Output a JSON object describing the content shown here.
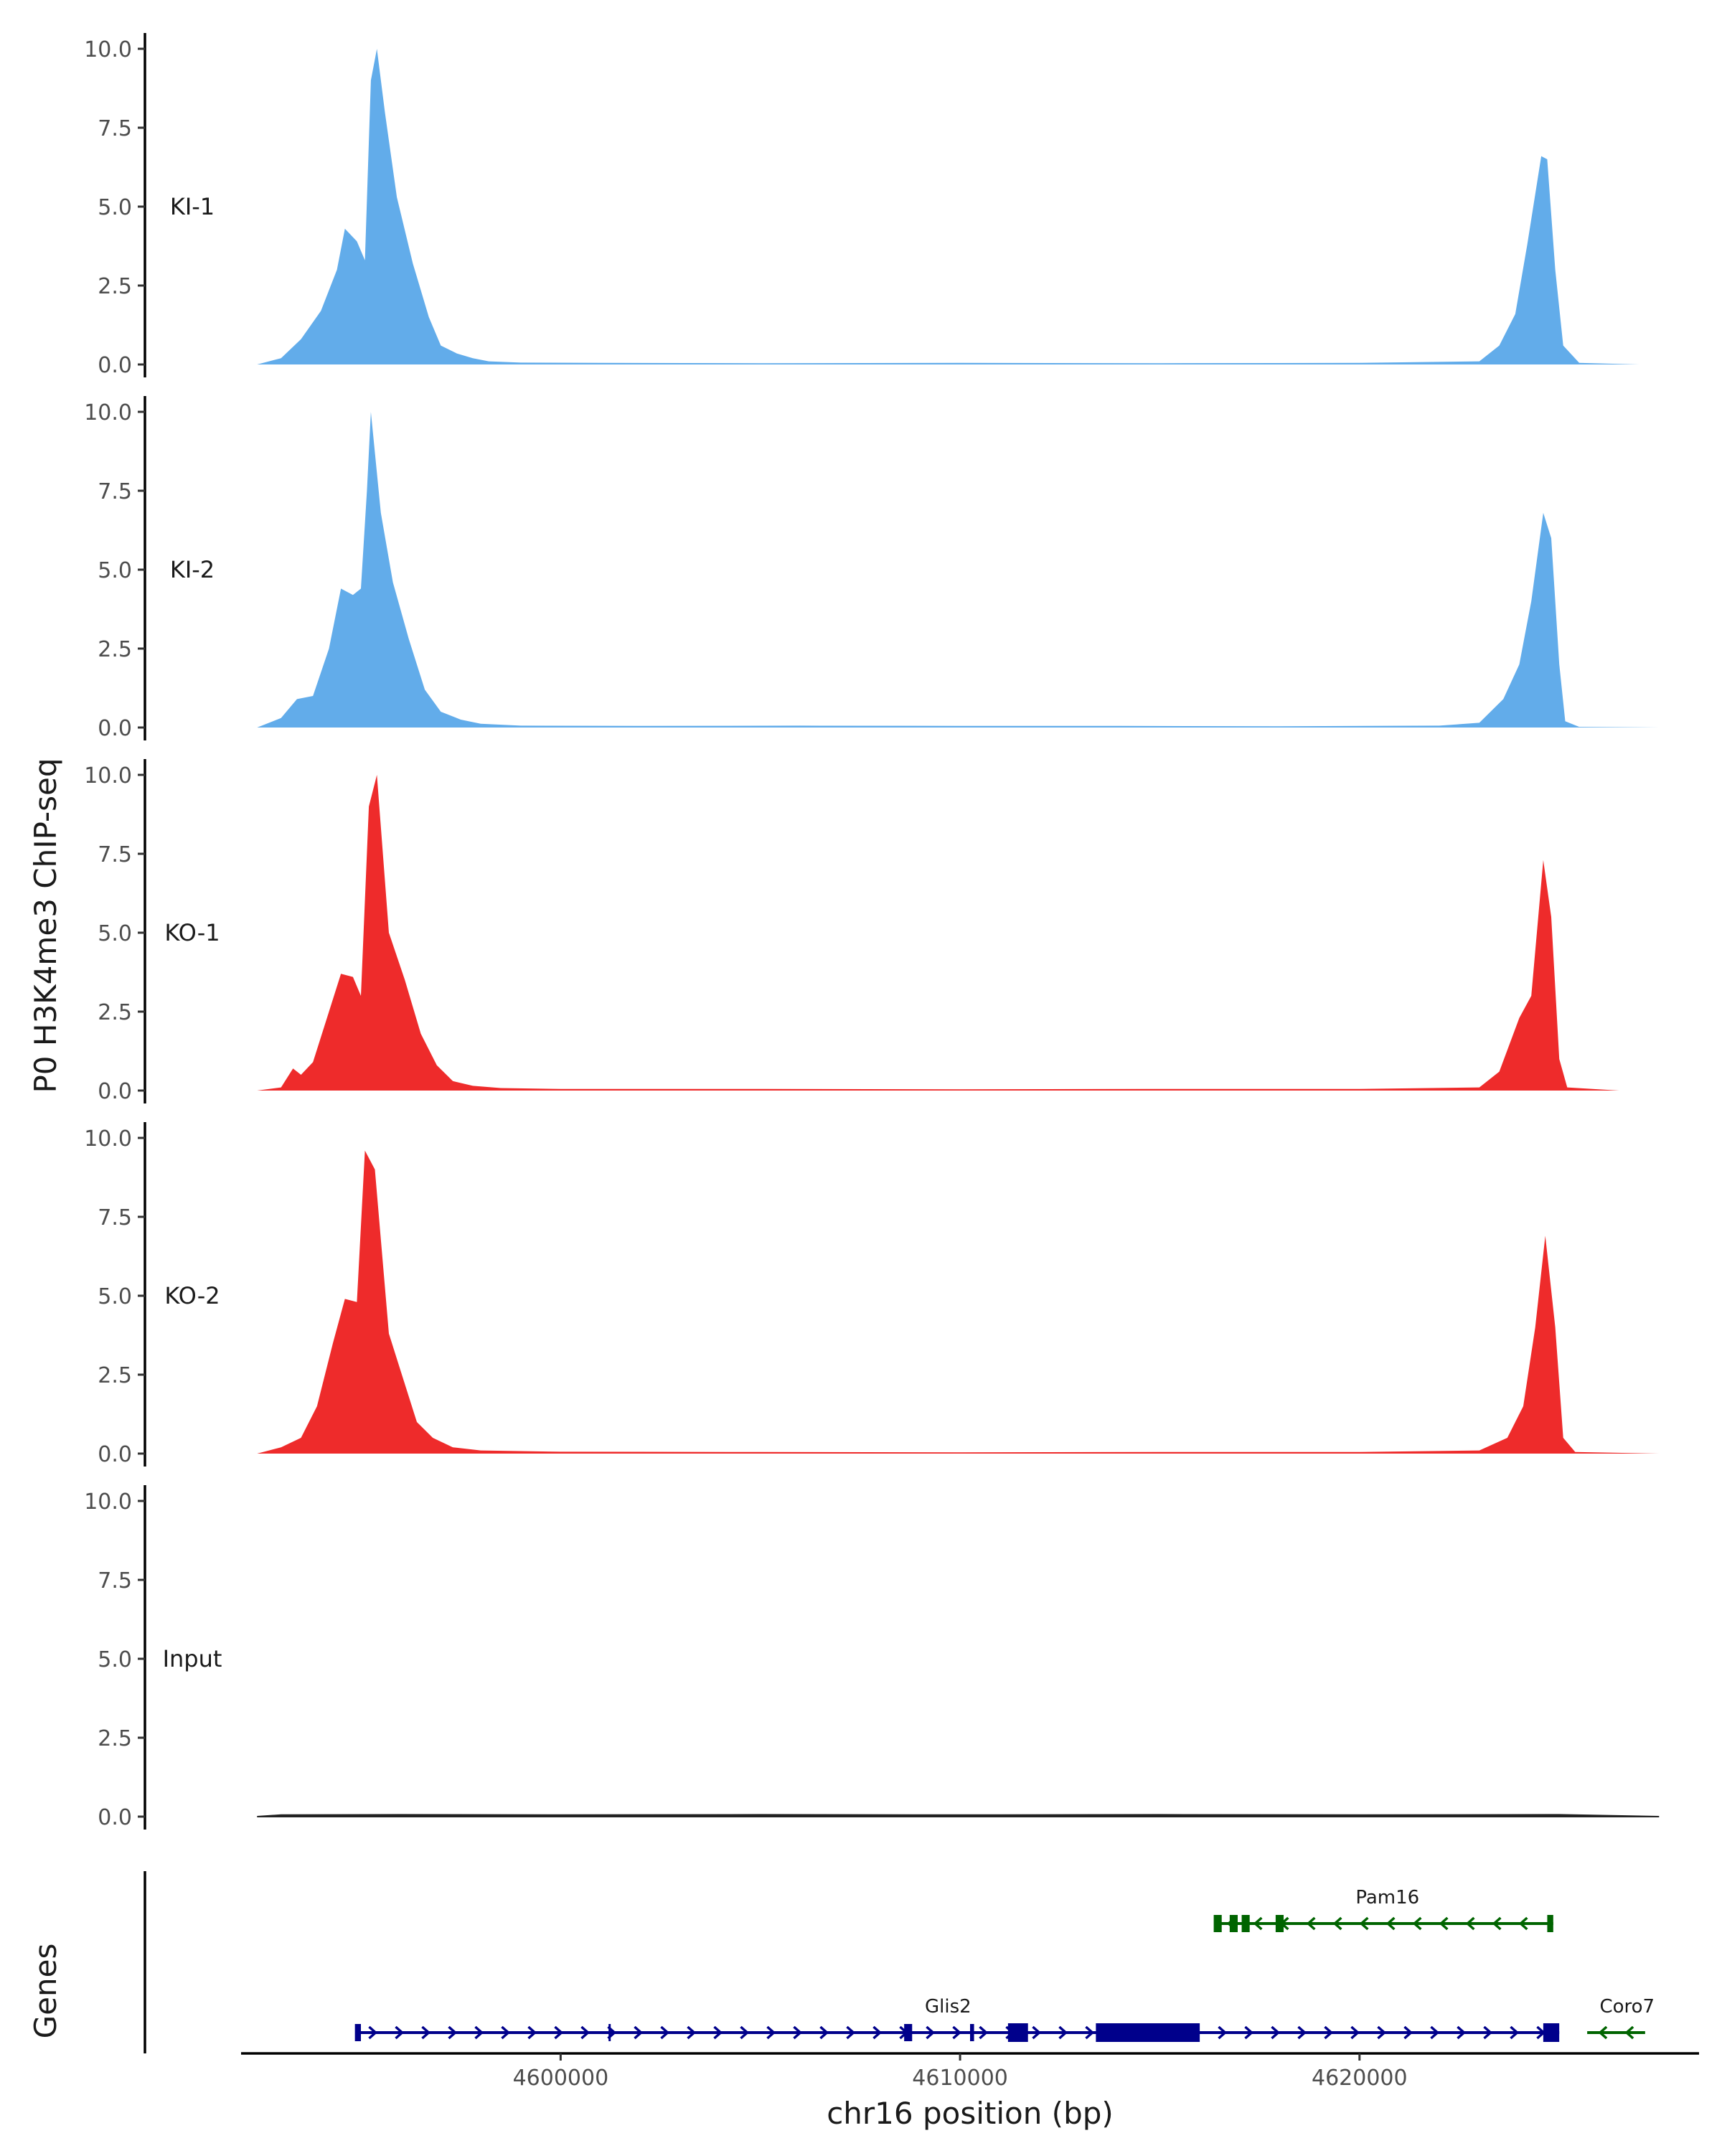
{
  "chart_data": {
    "type": "area",
    "ylabel": "P0 H3K4me3 ChIP-seq",
    "xlabel": "chr16 position (bp)",
    "genes_label": "Genes",
    "x_range": [
      4592000,
      4628500
    ],
    "x_ticks": [
      4600000,
      4610000,
      4620000
    ],
    "x_tick_labels": [
      "4600000",
      "4610000",
      "4620000"
    ],
    "y_range": [
      0,
      10
    ],
    "y_ticks": [
      0,
      2.5,
      5,
      7.5,
      10
    ],
    "y_tick_labels": [
      "0.0",
      "2.5",
      "5.0",
      "7.5",
      "10.0"
    ],
    "colors": {
      "KI": "#62acea",
      "KO": "#ee2b2b",
      "Input": "#222222",
      "Glis2": "#00008b",
      "Pam16": "#006400",
      "Coro7": "#006400"
    },
    "tracks": [
      {
        "name": "KI-1",
        "color": "#62acea",
        "points": [
          [
            4592400,
            0
          ],
          [
            4593000,
            0.2
          ],
          [
            4593500,
            0.8
          ],
          [
            4594000,
            1.7
          ],
          [
            4594400,
            3.0
          ],
          [
            4594600,
            4.3
          ],
          [
            4594900,
            3.9
          ],
          [
            4595100,
            3.3
          ],
          [
            4595250,
            9.0
          ],
          [
            4595400,
            10.0
          ],
          [
            4595600,
            8.0
          ],
          [
            4595900,
            5.3
          ],
          [
            4596300,
            3.2
          ],
          [
            4596700,
            1.5
          ],
          [
            4597000,
            0.6
          ],
          [
            4597400,
            0.35
          ],
          [
            4597800,
            0.2
          ],
          [
            4598200,
            0.1
          ],
          [
            4599000,
            0.06
          ],
          [
            4601000,
            0.05
          ],
          [
            4605000,
            0.04
          ],
          [
            4610000,
            0.05
          ],
          [
            4615000,
            0.04
          ],
          [
            4620000,
            0.05
          ],
          [
            4623000,
            0.1
          ],
          [
            4623500,
            0.6
          ],
          [
            4623900,
            1.6
          ],
          [
            4624200,
            3.8
          ],
          [
            4624550,
            6.6
          ],
          [
            4624700,
            6.5
          ],
          [
            4624900,
            3.0
          ],
          [
            4625100,
            0.6
          ],
          [
            4625500,
            0.05
          ],
          [
            4627000,
            0.0
          ]
        ]
      },
      {
        "name": "KI-2",
        "color": "#62acea",
        "points": [
          [
            4592400,
            0
          ],
          [
            4593000,
            0.3
          ],
          [
            4593400,
            0.9
          ],
          [
            4593800,
            1.0
          ],
          [
            4594200,
            2.5
          ],
          [
            4594500,
            4.4
          ],
          [
            4594800,
            4.2
          ],
          [
            4595000,
            4.4
          ],
          [
            4595150,
            7.5
          ],
          [
            4595250,
            10.0
          ],
          [
            4595500,
            6.8
          ],
          [
            4595800,
            4.6
          ],
          [
            4596200,
            2.8
          ],
          [
            4596600,
            1.2
          ],
          [
            4597000,
            0.5
          ],
          [
            4597500,
            0.25
          ],
          [
            4598000,
            0.12
          ],
          [
            4599000,
            0.06
          ],
          [
            4602000,
            0.05
          ],
          [
            4606000,
            0.06
          ],
          [
            4610000,
            0.05
          ],
          [
            4614000,
            0.05
          ],
          [
            4618000,
            0.04
          ],
          [
            4622000,
            0.06
          ],
          [
            4623000,
            0.15
          ],
          [
            4623600,
            0.9
          ],
          [
            4624000,
            2.0
          ],
          [
            4624300,
            4.0
          ],
          [
            4624600,
            6.8
          ],
          [
            4624800,
            6.0
          ],
          [
            4625000,
            2.0
          ],
          [
            4625150,
            0.2
          ],
          [
            4625500,
            0.02
          ],
          [
            4627500,
            0.0
          ]
        ]
      },
      {
        "name": "KO-1",
        "color": "#ee2b2b",
        "points": [
          [
            4592400,
            0
          ],
          [
            4593000,
            0.1
          ],
          [
            4593300,
            0.7
          ],
          [
            4593500,
            0.5
          ],
          [
            4593800,
            0.9
          ],
          [
            4594200,
            2.5
          ],
          [
            4594500,
            3.7
          ],
          [
            4594800,
            3.6
          ],
          [
            4595000,
            3.0
          ],
          [
            4595200,
            9.0
          ],
          [
            4595400,
            10.0
          ],
          [
            4595700,
            5.0
          ],
          [
            4596100,
            3.5
          ],
          [
            4596500,
            1.8
          ],
          [
            4596900,
            0.8
          ],
          [
            4597300,
            0.3
          ],
          [
            4597800,
            0.15
          ],
          [
            4598500,
            0.08
          ],
          [
            4600000,
            0.05
          ],
          [
            4605000,
            0.05
          ],
          [
            4610000,
            0.04
          ],
          [
            4615000,
            0.05
          ],
          [
            4620000,
            0.05
          ],
          [
            4623000,
            0.1
          ],
          [
            4623500,
            0.6
          ],
          [
            4624000,
            2.3
          ],
          [
            4624300,
            3.0
          ],
          [
            4624600,
            7.3
          ],
          [
            4624800,
            5.5
          ],
          [
            4625000,
            1.0
          ],
          [
            4625200,
            0.1
          ],
          [
            4626500,
            0.0
          ]
        ]
      },
      {
        "name": "KO-2",
        "color": "#ee2b2b",
        "points": [
          [
            4592400,
            0
          ],
          [
            4593000,
            0.2
          ],
          [
            4593500,
            0.5
          ],
          [
            4593900,
            1.5
          ],
          [
            4594300,
            3.5
          ],
          [
            4594600,
            4.9
          ],
          [
            4594900,
            4.8
          ],
          [
            4595100,
            9.6
          ],
          [
            4595350,
            9.0
          ],
          [
            4595700,
            3.8
          ],
          [
            4596000,
            2.6
          ],
          [
            4596400,
            1.0
          ],
          [
            4596800,
            0.5
          ],
          [
            4597300,
            0.2
          ],
          [
            4598000,
            0.1
          ],
          [
            4600000,
            0.06
          ],
          [
            4605000,
            0.05
          ],
          [
            4610000,
            0.04
          ],
          [
            4615000,
            0.05
          ],
          [
            4620000,
            0.05
          ],
          [
            4623000,
            0.1
          ],
          [
            4623700,
            0.5
          ],
          [
            4624100,
            1.5
          ],
          [
            4624400,
            4.0
          ],
          [
            4624650,
            6.9
          ],
          [
            4624900,
            4.0
          ],
          [
            4625100,
            0.5
          ],
          [
            4625400,
            0.05
          ],
          [
            4627500,
            0.0
          ]
        ]
      },
      {
        "name": "Input",
        "color": "#222222",
        "points": [
          [
            4592400,
            0
          ],
          [
            4593000,
            0.05
          ],
          [
            4596000,
            0.06
          ],
          [
            4600000,
            0.05
          ],
          [
            4605000,
            0.06
          ],
          [
            4610000,
            0.05
          ],
          [
            4615000,
            0.06
          ],
          [
            4620000,
            0.05
          ],
          [
            4625000,
            0.06
          ],
          [
            4627500,
            0.0
          ]
        ]
      }
    ],
    "genes": [
      {
        "name": "Pam16",
        "strand": "-",
        "start": 4616400,
        "end": 4624850,
        "label_x": 4620700,
        "row": 0,
        "color": "#006400",
        "exons": [
          [
            4616350,
            4616550
          ],
          [
            4616750,
            4616950
          ],
          [
            4617050,
            4617250
          ],
          [
            4617900,
            4618100
          ],
          [
            4624700,
            4624850
          ]
        ]
      },
      {
        "name": "Glis2",
        "strand": "+",
        "start": 4594900,
        "end": 4625000,
        "label_x": 4609700,
        "row": 1,
        "color": "#00008b",
        "exons": [
          [
            4594850,
            4595000
          ],
          [
            4601200,
            4601250
          ],
          [
            4608600,
            4608800
          ],
          [
            4610250,
            4610350
          ],
          [
            4611200,
            4611700
          ],
          [
            4613400,
            4616000
          ],
          [
            4624600,
            4625000
          ]
        ]
      },
      {
        "name": "Coro7",
        "strand": "-",
        "start": 4625700,
        "end": 4627150,
        "label_x": 4626700,
        "row": 1,
        "color": "#006400",
        "exons": []
      }
    ]
  }
}
